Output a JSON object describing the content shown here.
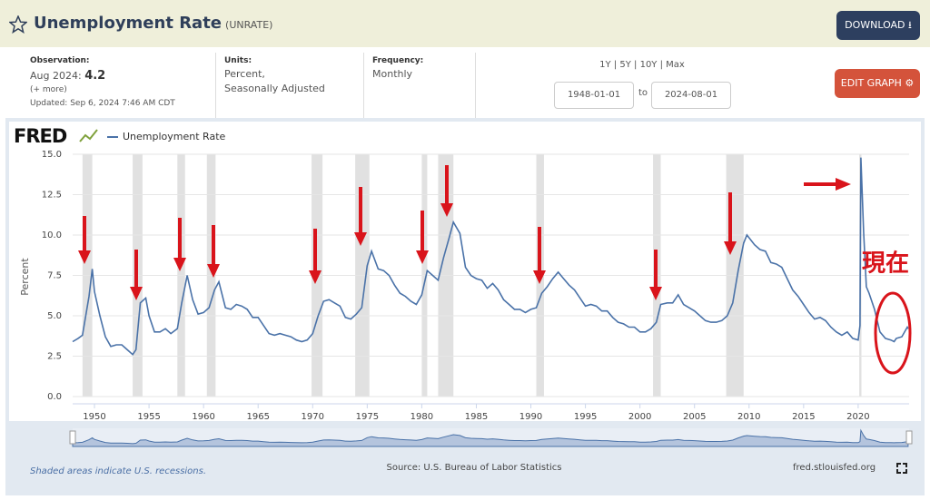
{
  "header": {
    "title": "Unemployment Rate",
    "series_id": "(UNRATE)",
    "download": "DOWNLOAD",
    "observation_label": "Observation:",
    "observation_date": "Aug 2024:",
    "observation_value": 4.2,
    "more": "(+ more)",
    "updated": "Updated: Sep 6, 2024 7:46 AM CDT",
    "units_label": "Units:",
    "units_line1": "Percent,",
    "units_line2": "Seasonally Adjusted",
    "frequency_label": "Frequency:",
    "frequency": "Monthly",
    "range_options": [
      "1Y",
      "5Y",
      "10Y",
      "Max"
    ],
    "start_date": "1948-01-01",
    "to": "to",
    "end_date": "2024-08-01",
    "edit_graph": "EDIT GRAPH"
  },
  "chart_data": {
    "type": "line",
    "logo": "FRED",
    "ylabel": "Percent",
    "xlim": [
      1948,
      2024.67
    ],
    "ylim": [
      0,
      15
    ],
    "xticks": [
      1950,
      1955,
      1960,
      1965,
      1970,
      1975,
      1980,
      1985,
      1990,
      1995,
      2000,
      2005,
      2010,
      2015,
      2020
    ],
    "yticks": [
      {
        "value": 0,
        "label": "0.0"
      },
      2.5,
      {
        "value": 5,
        "label": "5.0"
      },
      7.5,
      {
        "value": 10,
        "label": "10.0"
      },
      12.5,
      {
        "value": 15,
        "label": "15.0"
      }
    ],
    "grid": true,
    "recessions": [
      {
        "start": 1948.9,
        "end": 1949.8
      },
      {
        "start": 1953.5,
        "end": 1954.4
      },
      {
        "start": 1957.6,
        "end": 1958.3
      },
      {
        "start": 1960.3,
        "end": 1961.1
      },
      {
        "start": 1969.9,
        "end": 1970.9
      },
      {
        "start": 1973.9,
        "end": 1975.2
      },
      {
        "start": 1980.0,
        "end": 1980.5
      },
      {
        "start": 1981.5,
        "end": 1982.9
      },
      {
        "start": 1990.5,
        "end": 1991.2
      },
      {
        "start": 2001.2,
        "end": 2001.9
      },
      {
        "start": 2007.9,
        "end": 2009.5
      },
      {
        "start": 2020.1,
        "end": 2020.3
      }
    ],
    "recession_color": "#e1e1e1",
    "x": [
      1948.0,
      1948.5,
      1948.9,
      1949.5,
      1949.8,
      1950.0,
      1950.5,
      1951.0,
      1951.5,
      1952.0,
      1952.5,
      1953.0,
      1953.5,
      1953.8,
      1954.2,
      1954.7,
      1955.0,
      1955.5,
      1956.0,
      1956.5,
      1957.0,
      1957.6,
      1958.0,
      1958.5,
      1959.0,
      1959.5,
      1960.0,
      1960.5,
      1961.0,
      1961.4,
      1962.0,
      1962.5,
      1963.0,
      1963.5,
      1964.0,
      1964.5,
      1965.0,
      1965.5,
      1966.0,
      1966.5,
      1967.0,
      1967.5,
      1968.0,
      1968.5,
      1969.0,
      1969.5,
      1970.0,
      1970.5,
      1971.0,
      1971.5,
      1972.0,
      1972.5,
      1973.0,
      1973.5,
      1974.0,
      1974.5,
      1975.0,
      1975.4,
      1976.0,
      1976.5,
      1977.0,
      1977.5,
      1978.0,
      1978.5,
      1979.0,
      1979.5,
      1980.0,
      1980.5,
      1981.0,
      1981.5,
      1982.0,
      1982.5,
      1982.9,
      1983.5,
      1984.0,
      1984.5,
      1985.0,
      1985.5,
      1986.0,
      1986.5,
      1987.0,
      1987.5,
      1988.0,
      1988.5,
      1989.0,
      1989.5,
      1990.0,
      1990.5,
      1991.0,
      1991.5,
      1992.0,
      1992.5,
      1993.0,
      1993.5,
      1994.0,
      1994.5,
      1995.0,
      1995.5,
      1996.0,
      1996.5,
      1997.0,
      1997.5,
      1998.0,
      1998.5,
      1999.0,
      1999.5,
      2000.0,
      2000.5,
      2001.0,
      2001.5,
      2001.9,
      2002.5,
      2003.0,
      2003.5,
      2004.0,
      2004.5,
      2005.0,
      2005.5,
      2006.0,
      2006.5,
      2007.0,
      2007.5,
      2008.0,
      2008.5,
      2009.0,
      2009.5,
      2009.8,
      2010.5,
      2011.0,
      2011.5,
      2012.0,
      2012.5,
      2013.0,
      2013.5,
      2014.0,
      2014.5,
      2015.0,
      2015.5,
      2016.0,
      2016.5,
      2017.0,
      2017.5,
      2018.0,
      2018.5,
      2019.0,
      2019.5,
      2020.0,
      2020.17,
      2020.25,
      2020.5,
      2020.75,
      2021.0,
      2021.5,
      2022.0,
      2022.5,
      2023.0,
      2023.3,
      2023.5,
      2024.0,
      2024.5,
      2024.58
    ],
    "series": [
      {
        "name": "Unemployment Rate",
        "color": "#4a72a8",
        "values": [
          3.4,
          3.6,
          3.8,
          6.2,
          7.9,
          6.5,
          5.0,
          3.7,
          3.1,
          3.2,
          3.2,
          2.9,
          2.6,
          2.9,
          5.8,
          6.1,
          5.0,
          4.0,
          4.0,
          4.2,
          3.9,
          4.2,
          5.8,
          7.5,
          6.0,
          5.1,
          5.2,
          5.5,
          6.6,
          7.1,
          5.5,
          5.4,
          5.7,
          5.6,
          5.4,
          4.9,
          4.9,
          4.4,
          3.9,
          3.8,
          3.9,
          3.8,
          3.7,
          3.5,
          3.4,
          3.5,
          3.9,
          5.0,
          5.9,
          6.0,
          5.8,
          5.6,
          4.9,
          4.8,
          5.1,
          5.5,
          8.1,
          9.0,
          7.9,
          7.8,
          7.5,
          6.9,
          6.4,
          6.2,
          5.9,
          5.7,
          6.3,
          7.8,
          7.5,
          7.2,
          8.6,
          9.8,
          10.8,
          10.1,
          8.0,
          7.5,
          7.3,
          7.2,
          6.7,
          7.0,
          6.6,
          6.0,
          5.7,
          5.4,
          5.4,
          5.2,
          5.4,
          5.5,
          6.4,
          6.8,
          7.3,
          7.7,
          7.3,
          6.9,
          6.6,
          6.1,
          5.6,
          5.7,
          5.6,
          5.3,
          5.3,
          4.9,
          4.6,
          4.5,
          4.3,
          4.3,
          4.0,
          4.0,
          4.2,
          4.6,
          5.7,
          5.8,
          5.8,
          6.3,
          5.7,
          5.5,
          5.3,
          5.0,
          4.7,
          4.6,
          4.6,
          4.7,
          5.0,
          5.8,
          7.8,
          9.5,
          10.0,
          9.4,
          9.1,
          9.0,
          8.3,
          8.2,
          8.0,
          7.3,
          6.6,
          6.2,
          5.7,
          5.2,
          4.8,
          4.9,
          4.7,
          4.3,
          4.0,
          3.8,
          4.0,
          3.6,
          3.5,
          4.4,
          14.8,
          10.2,
          6.8,
          6.4,
          5.4,
          4.0,
          3.6,
          3.5,
          3.4,
          3.6,
          3.7,
          4.3,
          4.2
        ]
      }
    ],
    "annotation": "現在",
    "recession_note": "Shaded areas indicate U.S. recessions.",
    "source": "Source: U.S. Bureau of Labor Statistics",
    "site": "fred.stlouisfed.org"
  }
}
